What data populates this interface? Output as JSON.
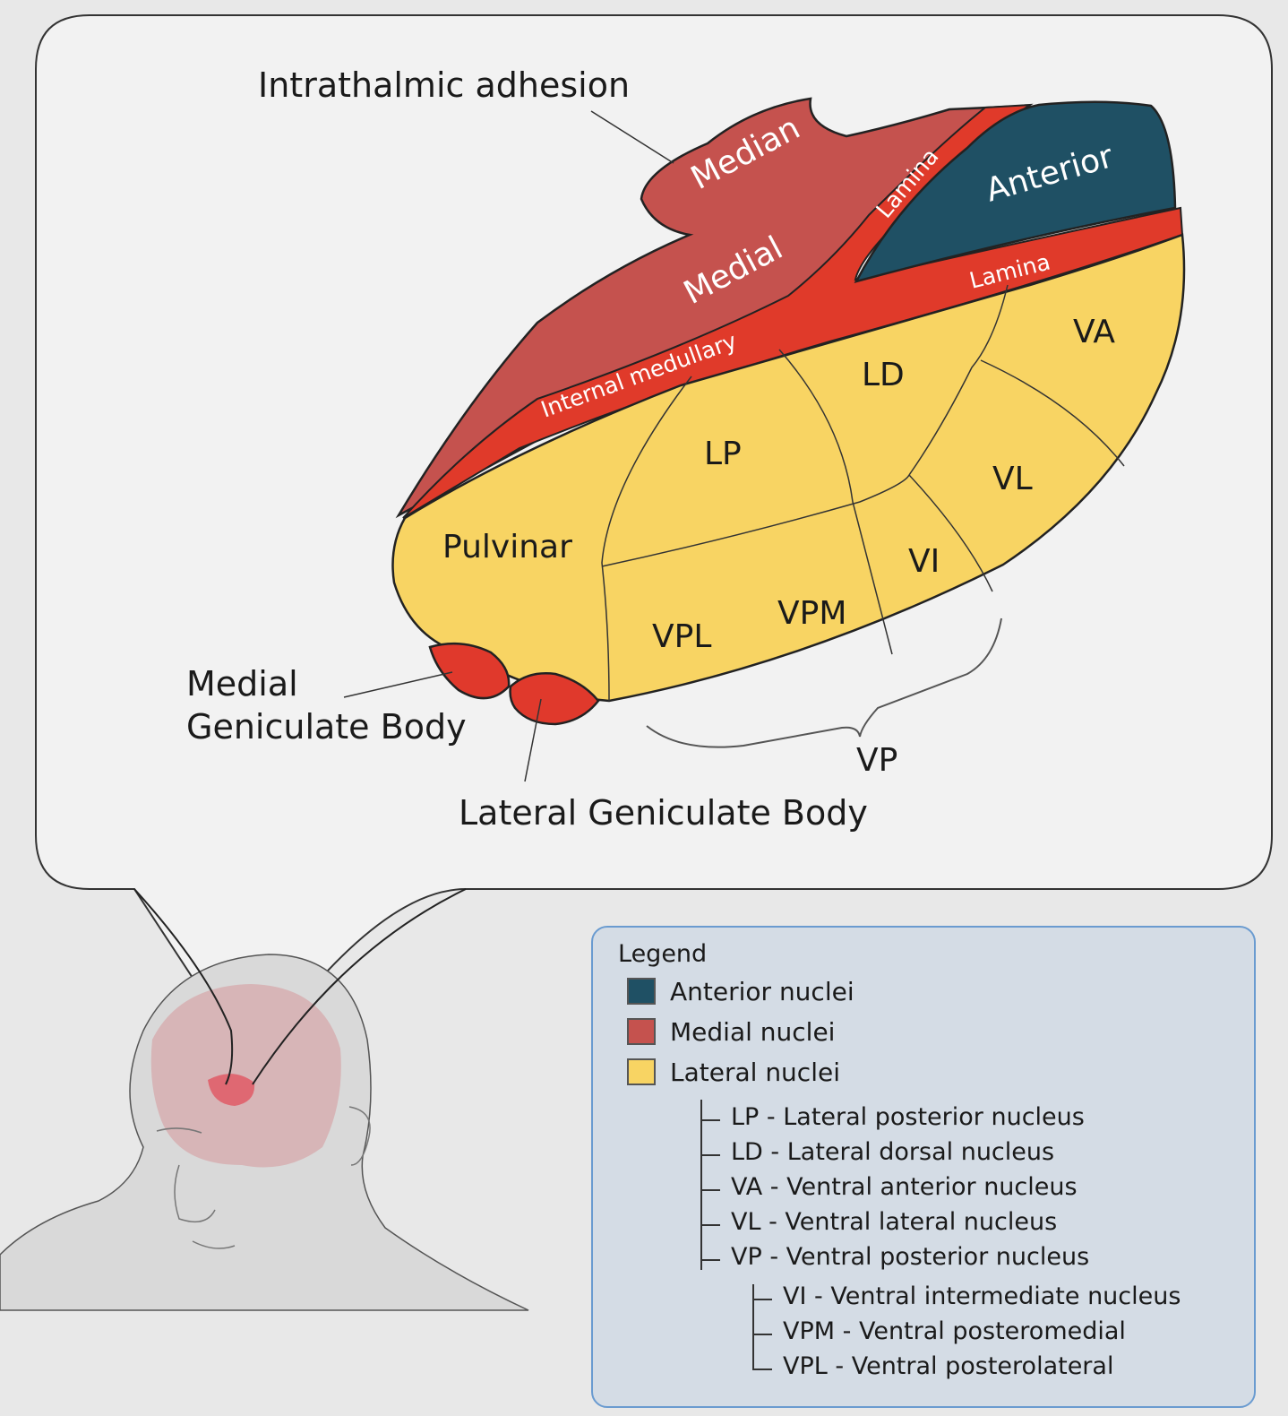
{
  "diagram": {
    "labels": {
      "intrathalamic_adhesion": "Intrathalmic adhesion",
      "median": "Median",
      "medial": "Medial",
      "lamina_upper": "Lamina",
      "lamina_lower": "Lamina",
      "anterior": "Anterior",
      "internal_medullary": "Internal medullary",
      "va": "VA",
      "ld": "LD",
      "lp": "LP",
      "vl": "VL",
      "pulvinar": "Pulvinar",
      "vi": "VI",
      "vpm": "VPM",
      "vpl": "VPL",
      "vp": "VP",
      "medial_geniculate_line1": "Medial",
      "medial_geniculate_line2": "Geniculate Body",
      "lateral_geniculate": "Lateral Geniculate Body"
    },
    "colors": {
      "anterior": "#1f5064",
      "medial": "#c5524e",
      "lamina": "#e03a2a",
      "lateral": "#f8d463",
      "geniculate": "#e0392c"
    }
  },
  "legend": {
    "title": "Legend",
    "groups": [
      {
        "label": "Anterior nuclei",
        "color": "#1f5064"
      },
      {
        "label": "Medial nuclei",
        "color": "#c5524e"
      },
      {
        "label": "Lateral nuclei",
        "color": "#f8d463"
      }
    ],
    "lateral_items": [
      "LP - Lateral posterior nucleus",
      "LD - Lateral dorsal nucleus",
      "VA - Ventral anterior nucleus",
      "VL - Ventral lateral nucleus",
      "VP - Ventral posterior nucleus"
    ],
    "vp_items": [
      "VI - Ventral intermediate nucleus",
      "VPM - Ventral posteromedial",
      "VPL - Ventral posterolateral"
    ]
  }
}
